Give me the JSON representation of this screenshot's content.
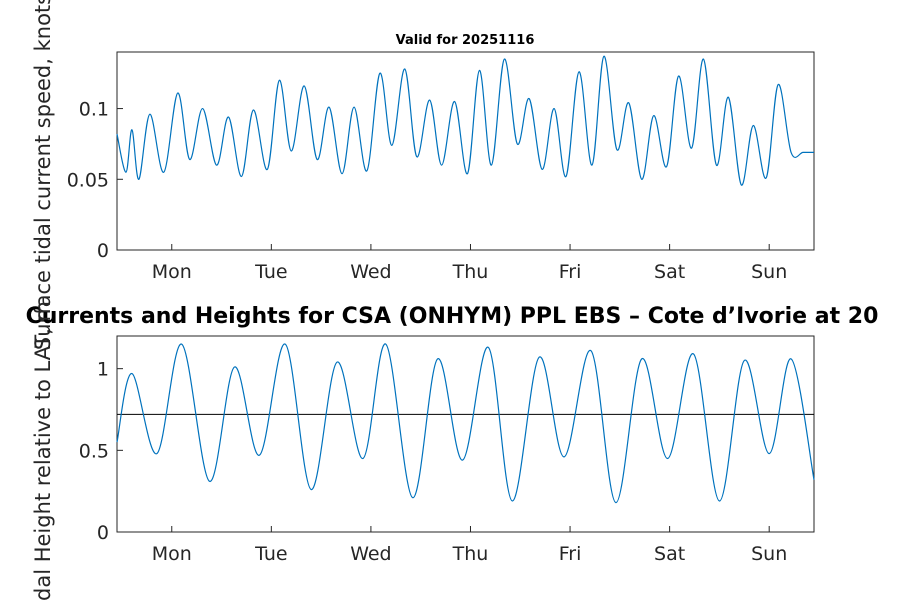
{
  "chart_data": [
    {
      "type": "line",
      "title": "Valid for 20251116",
      "xlabel": "",
      "ylabel": "Surface tidal current speed, knots",
      "x_categories": [
        "Mon",
        "Tue",
        "Wed",
        "Thu",
        "Fri",
        "Sat",
        "Sun"
      ],
      "x_range_days": [
        -0.55,
        6.45
      ],
      "ylim": [
        0,
        0.14
      ],
      "yticks": [
        "0",
        "0.05",
        "0.1"
      ],
      "ytick_values": [
        0,
        0.05,
        0.1
      ],
      "line_color": "#0072bd",
      "series": [
        {
          "name": "Current speed",
          "x": [
            -0.55,
            -0.46,
            -0.4,
            -0.33,
            -0.22,
            -0.08,
            0.06,
            0.18,
            0.31,
            0.45,
            0.57,
            0.7,
            0.82,
            0.96,
            1.08,
            1.2,
            1.33,
            1.46,
            1.58,
            1.71,
            1.83,
            1.96,
            2.09,
            2.21,
            2.34,
            2.46,
            2.59,
            2.71,
            2.84,
            2.97,
            3.09,
            3.21,
            3.34,
            3.47,
            3.59,
            3.72,
            3.84,
            3.96,
            4.09,
            4.22,
            4.34,
            4.47,
            4.59,
            4.72,
            4.84,
            4.97,
            5.09,
            5.22,
            5.34,
            5.47,
            5.59,
            5.72,
            5.84,
            5.97,
            6.09,
            6.22,
            6.34,
            6.45
          ],
          "values": [
            0.082,
            0.055,
            0.085,
            0.05,
            0.096,
            0.055,
            0.111,
            0.064,
            0.1,
            0.06,
            0.094,
            0.052,
            0.099,
            0.057,
            0.12,
            0.07,
            0.116,
            0.064,
            0.101,
            0.054,
            0.101,
            0.056,
            0.125,
            0.074,
            0.128,
            0.066,
            0.106,
            0.06,
            0.105,
            0.054,
            0.127,
            0.06,
            0.135,
            0.075,
            0.107,
            0.057,
            0.1,
            0.052,
            0.126,
            0.06,
            0.137,
            0.071,
            0.104,
            0.05,
            0.095,
            0.059,
            0.123,
            0.072,
            0.135,
            0.06,
            0.108,
            0.046,
            0.088,
            0.051,
            0.117,
            0.069,
            0.069,
            0.069
          ]
        }
      ]
    },
    {
      "type": "line",
      "title": "Currents and Heights for CSA (ONHYM) PPL EBS  – Cote d’Ivorie at 20",
      "xlabel": "",
      "ylabel": "Tidal Height relative to LAT, m",
      "x_categories": [
        "Mon",
        "Tue",
        "Wed",
        "Thu",
        "Fri",
        "Sat",
        "Sun"
      ],
      "x_range_days": [
        -0.55,
        6.45
      ],
      "ylim": [
        0,
        1.2
      ],
      "yticks": [
        "0",
        "0.5",
        "1"
      ],
      "ytick_values": [
        0,
        0.5,
        1
      ],
      "reference_line": 0.72,
      "line_color": "#0072bd",
      "series": [
        {
          "name": "Tidal height",
          "x": [
            -0.55,
            -0.4,
            -0.15,
            0.1,
            0.38,
            0.63,
            0.88,
            1.14,
            1.4,
            1.66,
            1.92,
            2.15,
            2.42,
            2.67,
            2.92,
            3.18,
            3.42,
            3.69,
            3.94,
            4.21,
            4.46,
            4.72,
            4.98,
            5.24,
            5.5,
            5.75,
            6.0,
            6.22,
            6.45
          ],
          "values": [
            0.55,
            0.97,
            0.48,
            1.15,
            0.31,
            1.01,
            0.47,
            1.15,
            0.26,
            1.04,
            0.45,
            1.15,
            0.21,
            1.06,
            0.44,
            1.13,
            0.19,
            1.07,
            0.46,
            1.11,
            0.18,
            1.06,
            0.45,
            1.09,
            0.19,
            1.05,
            0.48,
            1.06,
            0.32
          ]
        }
      ]
    }
  ]
}
